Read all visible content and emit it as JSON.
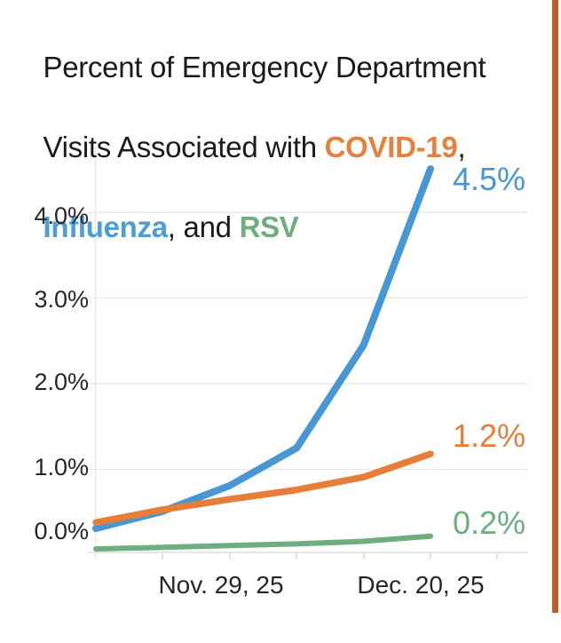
{
  "title": {
    "line1": "Percent of Emergency Department",
    "line2_prefix": "Visits Associated with ",
    "line2_covid": "COVID-19",
    "line2_comma": ",",
    "line3_influenza": "Influenza",
    "line3_mid": ", and ",
    "line3_rsv": "RSV",
    "colors": {
      "text": "#1a1a1a",
      "covid": "#E8803D",
      "influenza": "#4D9DD8",
      "rsv": "#6EAD7D"
    }
  },
  "chart_data": {
    "type": "line",
    "title": "Percent of Emergency Department Visits Associated with COVID-19, Influenza, and RSV",
    "grid": true,
    "ylim": [
      0,
      4.7
    ],
    "y_tick_labels": [
      "0.0%",
      "1.0%",
      "2.0%",
      "3.0%",
      "4.0%"
    ],
    "x_tick_labels": [
      "Nov. 29, 25",
      "Dec. 20, 25"
    ],
    "series": [
      {
        "name": "Influenza",
        "color": "#4697D4",
        "values": [
          0.28,
          0.48,
          0.78,
          1.22,
          2.42,
          4.48
        ],
        "end_label": "4.5%"
      },
      {
        "name": "COVID-19",
        "color": "#E67E3A",
        "values": [
          0.35,
          0.5,
          0.62,
          0.73,
          0.88,
          1.15
        ],
        "end_label": "1.2%"
      },
      {
        "name": "RSV",
        "color": "#6EAD7D",
        "values": [
          0.04,
          0.06,
          0.08,
          0.1,
          0.13,
          0.19
        ],
        "end_label": "0.2%"
      }
    ],
    "gridline_color": "#E9E9E9",
    "axis_line_color": "#DEDEDE"
  },
  "accent_bar_color": "#BE602E"
}
